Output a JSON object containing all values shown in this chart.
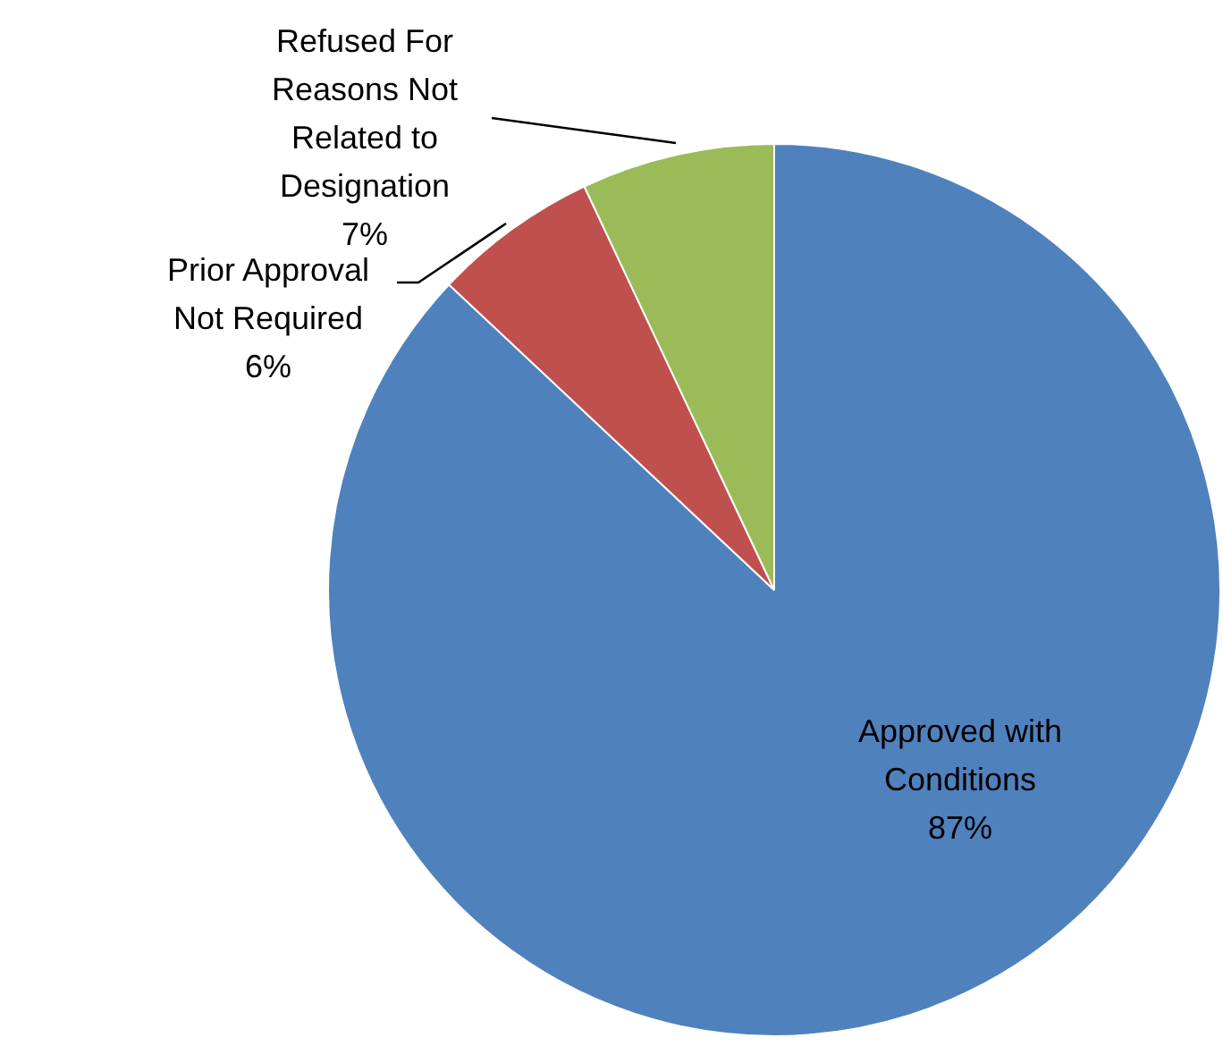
{
  "chart_data": {
    "type": "pie",
    "categories": [
      "Approved with Conditions",
      "Prior Approval Not Required",
      "Refused For Reasons Not Related to Designation"
    ],
    "values": [
      87,
      6,
      7
    ],
    "colors": [
      "#4f81bd",
      "#c0504d",
      "#9bbb59"
    ],
    "value_labels": [
      "87%",
      "6%",
      "7%"
    ],
    "legend": false
  }
}
